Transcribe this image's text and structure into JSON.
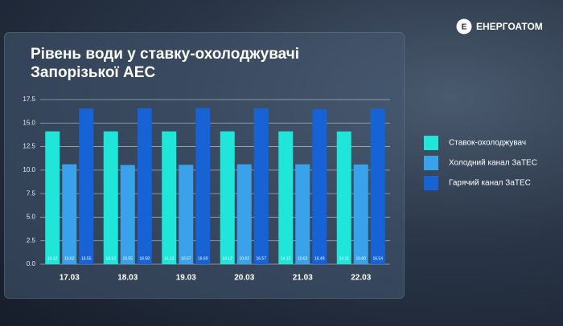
{
  "brand": "ЕНЕРГОАТОМ",
  "chart_data": {
    "type": "bar",
    "title": "Рівень води у ставку-охолоджувачі Запорізької АЕС",
    "categories": [
      "17.03",
      "18.03",
      "19.03",
      "20.03",
      "21.03",
      "22.03"
    ],
    "series": [
      {
        "name": "Ставок-охолоджувач",
        "color": "#1fe6d8",
        "values": [
          14.12,
          14.12,
          14.12,
          14.12,
          14.12,
          14.11
        ],
        "value_labels": [
          "14.12",
          "14.12",
          "14.12",
          "14.12",
          "14.12",
          "14.11"
        ]
      },
      {
        "name": "Холодний канал ЗаТЕС",
        "color": "#3aa2ea",
        "values": [
          10.62,
          10.55,
          10.57,
          10.62,
          10.62,
          10.6
        ],
        "value_labels": [
          "10.62",
          "10.55",
          "10.57",
          "10.62",
          "10.62",
          "10.60"
        ]
      },
      {
        "name": "Гарячий канал ЗаТЕС",
        "color": "#1763d6",
        "values": [
          16.55,
          16.58,
          16.6,
          16.57,
          16.49,
          16.54
        ],
        "value_labels": [
          "16.55",
          "16.58",
          "16.60",
          "16.57",
          "16.49",
          "16.54"
        ]
      }
    ],
    "ylim": [
      0,
      17.5
    ],
    "yticks": [
      {
        "value": 0,
        "label": "0.0"
      },
      2.5,
      {
        "value": 5,
        "label": "5.0"
      },
      7.5,
      {
        "value": 10,
        "label": "10.0"
      },
      12.5,
      {
        "value": 15,
        "label": "15.0"
      },
      17.5
    ],
    "grid": true,
    "legend": "right"
  }
}
